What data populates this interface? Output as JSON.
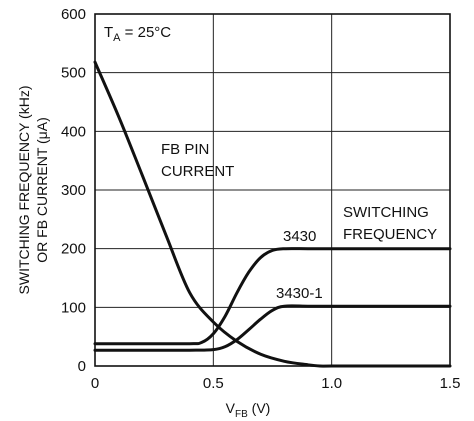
{
  "chart_data": {
    "type": "line",
    "xlabel_main": "V",
    "xlabel_sub": "FB",
    "xlabel_unit": " (V)",
    "ylabel_line1": "SWITCHING FREQUENCY (kHz)",
    "ylabel_line2": "OR FB CURRENT (μA)",
    "xlim": [
      0,
      1.5
    ],
    "ylim": [
      0,
      600
    ],
    "x_ticks": [
      0,
      0.5,
      1.0,
      1.5
    ],
    "x_tick_labels": [
      "0",
      "0.5",
      "1.0",
      "1.5"
    ],
    "y_ticks": [
      0,
      100,
      200,
      300,
      400,
      500,
      600
    ],
    "y_tick_labels": [
      "0",
      "100",
      "200",
      "300",
      "400",
      "500",
      "600"
    ],
    "grid": true,
    "condition": {
      "main": "T",
      "sub": "A",
      "rest": " = 25°C"
    },
    "annotations": {
      "fb_pin_line1": "FB PIN",
      "fb_pin_line2": "CURRENT",
      "switching_line1": "SWITCHING",
      "switching_line2": "FREQUENCY",
      "label_3430": "3430",
      "label_3430_1": "3430-1"
    },
    "series": [
      {
        "x": [
          0,
          0.1,
          0.2,
          0.3,
          0.4,
          0.5,
          0.6,
          0.7,
          0.8,
          0.9,
          0.95,
          1.0,
          1.2,
          1.5
        ],
        "y": [
          518,
          425,
          325,
          223,
          125,
          75,
          42,
          20,
          8,
          2,
          0,
          0,
          0,
          0
        ]
      },
      {
        "x": [
          0,
          0.2,
          0.4,
          0.45,
          0.5,
          0.55,
          0.6,
          0.65,
          0.7,
          0.75,
          0.8,
          0.9,
          1.0,
          1.5
        ],
        "y": [
          38,
          38,
          38,
          40,
          55,
          85,
          125,
          160,
          185,
          197,
          200,
          200,
          200,
          200
        ]
      },
      {
        "x": [
          0,
          0.2,
          0.4,
          0.5,
          0.55,
          0.6,
          0.65,
          0.7,
          0.75,
          0.8,
          0.9,
          1.0,
          1.5
        ],
        "y": [
          27,
          27,
          27,
          28,
          33,
          45,
          62,
          80,
          95,
          102,
          102,
          102,
          102
        ]
      }
    ]
  }
}
